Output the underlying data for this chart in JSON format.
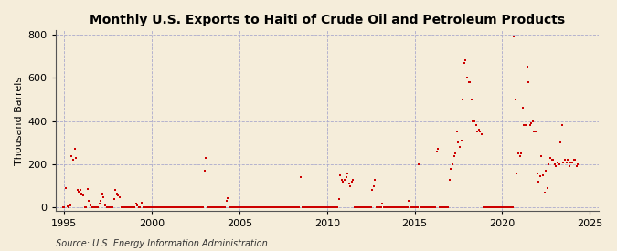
{
  "title": "Monthly U.S. Exports to Haiti of Crude Oil and Petroleum Products",
  "ylabel": "Thousand Barrels",
  "source_text": "Source: U.S. Energy Information Administration",
  "xlim": [
    1994.5,
    2025.5
  ],
  "ylim": [
    -15,
    820
  ],
  "yticks": [
    0,
    200,
    400,
    600,
    800
  ],
  "xticks": [
    1995,
    2000,
    2005,
    2010,
    2015,
    2020,
    2025
  ],
  "marker_color": "#CC0000",
  "marker_size": 4,
  "background_color": "#F5EDDA",
  "grid_color": "#AAAACC",
  "title_fontsize": 10,
  "source_fontsize": 7,
  "data": [
    [
      1994.917,
      2
    ],
    [
      1995.0,
      3
    ],
    [
      1995.083,
      90
    ],
    [
      1995.167,
      8
    ],
    [
      1995.25,
      3
    ],
    [
      1995.333,
      10
    ],
    [
      1995.417,
      240
    ],
    [
      1995.5,
      220
    ],
    [
      1995.583,
      270
    ],
    [
      1995.667,
      230
    ],
    [
      1995.75,
      80
    ],
    [
      1995.833,
      75
    ],
    [
      1995.917,
      80
    ],
    [
      1996.0,
      60
    ],
    [
      1996.083,
      55
    ],
    [
      1996.167,
      3
    ],
    [
      1996.25,
      3
    ],
    [
      1996.333,
      85
    ],
    [
      1996.417,
      30
    ],
    [
      1996.5,
      10
    ],
    [
      1996.583,
      3
    ],
    [
      1996.667,
      3
    ],
    [
      1996.75,
      3
    ],
    [
      1996.833,
      3
    ],
    [
      1996.917,
      3
    ],
    [
      1997.0,
      20
    ],
    [
      1997.083,
      30
    ],
    [
      1997.167,
      60
    ],
    [
      1997.25,
      50
    ],
    [
      1997.333,
      10
    ],
    [
      1997.417,
      3
    ],
    [
      1997.5,
      3
    ],
    [
      1997.583,
      3
    ],
    [
      1997.667,
      3
    ],
    [
      1997.75,
      3
    ],
    [
      1997.833,
      40
    ],
    [
      1997.917,
      80
    ],
    [
      1998.0,
      60
    ],
    [
      1998.083,
      55
    ],
    [
      1998.167,
      50
    ],
    [
      1998.25,
      3
    ],
    [
      1998.333,
      3
    ],
    [
      1998.417,
      3
    ],
    [
      1998.5,
      3
    ],
    [
      1998.583,
      3
    ],
    [
      1998.667,
      3
    ],
    [
      1998.75,
      3
    ],
    [
      1998.833,
      3
    ],
    [
      1998.917,
      3
    ],
    [
      1999.0,
      3
    ],
    [
      1999.083,
      20
    ],
    [
      1999.167,
      10
    ],
    [
      1999.25,
      3
    ],
    [
      1999.333,
      3
    ],
    [
      1999.417,
      25
    ],
    [
      1999.5,
      3
    ],
    [
      1999.583,
      3
    ],
    [
      1999.667,
      3
    ],
    [
      1999.75,
      3
    ],
    [
      1999.833,
      3
    ],
    [
      1999.917,
      3
    ],
    [
      2000.0,
      3
    ],
    [
      2000.083,
      3
    ],
    [
      2000.167,
      3
    ],
    [
      2000.25,
      3
    ],
    [
      2000.333,
      3
    ],
    [
      2000.417,
      3
    ],
    [
      2000.5,
      3
    ],
    [
      2000.583,
      3
    ],
    [
      2000.667,
      3
    ],
    [
      2000.75,
      3
    ],
    [
      2000.833,
      3
    ],
    [
      2000.917,
      3
    ],
    [
      2001.0,
      3
    ],
    [
      2001.083,
      3
    ],
    [
      2001.167,
      3
    ],
    [
      2001.25,
      3
    ],
    [
      2001.333,
      3
    ],
    [
      2001.417,
      3
    ],
    [
      2001.5,
      3
    ],
    [
      2001.583,
      3
    ],
    [
      2001.667,
      3
    ],
    [
      2001.75,
      3
    ],
    [
      2001.833,
      3
    ],
    [
      2001.917,
      3
    ],
    [
      2002.0,
      3
    ],
    [
      2002.083,
      3
    ],
    [
      2002.167,
      3
    ],
    [
      2002.25,
      3
    ],
    [
      2002.333,
      3
    ],
    [
      2002.417,
      3
    ],
    [
      2002.5,
      3
    ],
    [
      2002.583,
      3
    ],
    [
      2002.667,
      3
    ],
    [
      2002.75,
      3
    ],
    [
      2002.833,
      3
    ],
    [
      2002.917,
      3
    ],
    [
      2003.0,
      170
    ],
    [
      2003.083,
      230
    ],
    [
      2003.167,
      3
    ],
    [
      2003.25,
      3
    ],
    [
      2003.333,
      3
    ],
    [
      2003.417,
      3
    ],
    [
      2003.5,
      3
    ],
    [
      2003.583,
      3
    ],
    [
      2003.667,
      3
    ],
    [
      2003.75,
      3
    ],
    [
      2003.833,
      3
    ],
    [
      2003.917,
      3
    ],
    [
      2004.0,
      3
    ],
    [
      2004.083,
      3
    ],
    [
      2004.167,
      3
    ],
    [
      2004.25,
      30
    ],
    [
      2004.333,
      45
    ],
    [
      2004.417,
      3
    ],
    [
      2004.5,
      3
    ],
    [
      2004.583,
      3
    ],
    [
      2004.667,
      3
    ],
    [
      2004.75,
      3
    ],
    [
      2004.833,
      3
    ],
    [
      2004.917,
      3
    ],
    [
      2005.0,
      3
    ],
    [
      2005.083,
      3
    ],
    [
      2005.167,
      3
    ],
    [
      2005.25,
      3
    ],
    [
      2005.333,
      3
    ],
    [
      2005.417,
      3
    ],
    [
      2005.5,
      3
    ],
    [
      2005.583,
      3
    ],
    [
      2005.667,
      3
    ],
    [
      2005.75,
      3
    ],
    [
      2005.833,
      3
    ],
    [
      2005.917,
      3
    ],
    [
      2006.0,
      3
    ],
    [
      2006.083,
      3
    ],
    [
      2006.167,
      3
    ],
    [
      2006.25,
      3
    ],
    [
      2006.333,
      3
    ],
    [
      2006.417,
      3
    ],
    [
      2006.5,
      3
    ],
    [
      2006.583,
      3
    ],
    [
      2006.667,
      3
    ],
    [
      2006.75,
      3
    ],
    [
      2006.833,
      3
    ],
    [
      2006.917,
      3
    ],
    [
      2007.0,
      3
    ],
    [
      2007.083,
      3
    ],
    [
      2007.167,
      3
    ],
    [
      2007.25,
      3
    ],
    [
      2007.333,
      3
    ],
    [
      2007.417,
      3
    ],
    [
      2007.5,
      3
    ],
    [
      2007.583,
      3
    ],
    [
      2007.667,
      3
    ],
    [
      2007.75,
      3
    ],
    [
      2007.833,
      3
    ],
    [
      2007.917,
      3
    ],
    [
      2008.0,
      3
    ],
    [
      2008.083,
      3
    ],
    [
      2008.167,
      3
    ],
    [
      2008.25,
      3
    ],
    [
      2008.333,
      3
    ],
    [
      2008.417,
      3
    ],
    [
      2008.5,
      140
    ],
    [
      2008.583,
      3
    ],
    [
      2008.667,
      3
    ],
    [
      2008.75,
      3
    ],
    [
      2008.833,
      3
    ],
    [
      2008.917,
      3
    ],
    [
      2009.0,
      3
    ],
    [
      2009.083,
      3
    ],
    [
      2009.167,
      3
    ],
    [
      2009.25,
      3
    ],
    [
      2009.333,
      3
    ],
    [
      2009.417,
      3
    ],
    [
      2009.5,
      3
    ],
    [
      2009.583,
      3
    ],
    [
      2009.667,
      3
    ],
    [
      2009.75,
      3
    ],
    [
      2009.833,
      3
    ],
    [
      2009.917,
      3
    ],
    [
      2010.0,
      3
    ],
    [
      2010.083,
      3
    ],
    [
      2010.167,
      3
    ],
    [
      2010.25,
      3
    ],
    [
      2010.333,
      3
    ],
    [
      2010.417,
      3
    ],
    [
      2010.5,
      3
    ],
    [
      2010.583,
      3
    ],
    [
      2010.667,
      40
    ],
    [
      2010.75,
      150
    ],
    [
      2010.833,
      130
    ],
    [
      2010.917,
      120
    ],
    [
      2011.0,
      130
    ],
    [
      2011.083,
      140
    ],
    [
      2011.167,
      160
    ],
    [
      2011.25,
      110
    ],
    [
      2011.333,
      100
    ],
    [
      2011.417,
      120
    ],
    [
      2011.5,
      130
    ],
    [
      2011.583,
      3
    ],
    [
      2011.667,
      3
    ],
    [
      2011.75,
      3
    ],
    [
      2011.833,
      3
    ],
    [
      2011.917,
      3
    ],
    [
      2012.0,
      3
    ],
    [
      2012.083,
      3
    ],
    [
      2012.167,
      3
    ],
    [
      2012.25,
      3
    ],
    [
      2012.333,
      3
    ],
    [
      2012.417,
      3
    ],
    [
      2012.5,
      3
    ],
    [
      2012.583,
      80
    ],
    [
      2012.667,
      100
    ],
    [
      2012.75,
      130
    ],
    [
      2012.833,
      3
    ],
    [
      2012.917,
      3
    ],
    [
      2013.0,
      3
    ],
    [
      2013.083,
      3
    ],
    [
      2013.167,
      20
    ],
    [
      2013.25,
      3
    ],
    [
      2013.333,
      3
    ],
    [
      2013.417,
      3
    ],
    [
      2013.5,
      3
    ],
    [
      2013.583,
      3
    ],
    [
      2013.667,
      3
    ],
    [
      2013.75,
      3
    ],
    [
      2013.833,
      3
    ],
    [
      2013.917,
      3
    ],
    [
      2014.0,
      3
    ],
    [
      2014.083,
      3
    ],
    [
      2014.167,
      3
    ],
    [
      2014.25,
      3
    ],
    [
      2014.333,
      3
    ],
    [
      2014.417,
      3
    ],
    [
      2014.5,
      3
    ],
    [
      2014.583,
      3
    ],
    [
      2014.667,
      30
    ],
    [
      2014.75,
      3
    ],
    [
      2014.833,
      3
    ],
    [
      2014.917,
      3
    ],
    [
      2015.0,
      3
    ],
    [
      2015.083,
      3
    ],
    [
      2015.167,
      3
    ],
    [
      2015.25,
      200
    ],
    [
      2015.333,
      3
    ],
    [
      2015.417,
      3
    ],
    [
      2015.5,
      3
    ],
    [
      2015.583,
      3
    ],
    [
      2015.667,
      3
    ],
    [
      2015.75,
      3
    ],
    [
      2015.833,
      3
    ],
    [
      2015.917,
      3
    ],
    [
      2016.0,
      3
    ],
    [
      2016.083,
      3
    ],
    [
      2016.167,
      3
    ],
    [
      2016.25,
      260
    ],
    [
      2016.333,
      270
    ],
    [
      2016.417,
      3
    ],
    [
      2016.5,
      3
    ],
    [
      2016.583,
      3
    ],
    [
      2016.667,
      3
    ],
    [
      2016.75,
      3
    ],
    [
      2016.833,
      3
    ],
    [
      2016.917,
      3
    ],
    [
      2017.0,
      130
    ],
    [
      2017.083,
      180
    ],
    [
      2017.167,
      200
    ],
    [
      2017.25,
      240
    ],
    [
      2017.333,
      250
    ],
    [
      2017.417,
      350
    ],
    [
      2017.5,
      300
    ],
    [
      2017.583,
      280
    ],
    [
      2017.667,
      310
    ],
    [
      2017.75,
      500
    ],
    [
      2017.833,
      670
    ],
    [
      2017.917,
      680
    ],
    [
      2018.0,
      600
    ],
    [
      2018.083,
      580
    ],
    [
      2018.167,
      580
    ],
    [
      2018.25,
      500
    ],
    [
      2018.333,
      400
    ],
    [
      2018.417,
      400
    ],
    [
      2018.5,
      380
    ],
    [
      2018.583,
      350
    ],
    [
      2018.667,
      360
    ],
    [
      2018.75,
      350
    ],
    [
      2018.833,
      340
    ],
    [
      2018.917,
      3
    ],
    [
      2019.0,
      3
    ],
    [
      2019.083,
      3
    ],
    [
      2019.167,
      3
    ],
    [
      2019.25,
      3
    ],
    [
      2019.333,
      3
    ],
    [
      2019.417,
      3
    ],
    [
      2019.5,
      3
    ],
    [
      2019.583,
      3
    ],
    [
      2019.667,
      3
    ],
    [
      2019.75,
      3
    ],
    [
      2019.833,
      3
    ],
    [
      2019.917,
      3
    ],
    [
      2020.0,
      3
    ],
    [
      2020.083,
      3
    ],
    [
      2020.167,
      3
    ],
    [
      2020.25,
      3
    ],
    [
      2020.333,
      3
    ],
    [
      2020.417,
      3
    ],
    [
      2020.5,
      3
    ],
    [
      2020.583,
      3
    ],
    [
      2020.667,
      790
    ],
    [
      2020.75,
      500
    ],
    [
      2020.833,
      160
    ],
    [
      2020.917,
      250
    ],
    [
      2021.0,
      240
    ],
    [
      2021.083,
      250
    ],
    [
      2021.167,
      460
    ],
    [
      2021.25,
      380
    ],
    [
      2021.333,
      380
    ],
    [
      2021.417,
      650
    ],
    [
      2021.5,
      580
    ],
    [
      2021.583,
      380
    ],
    [
      2021.667,
      390
    ],
    [
      2021.75,
      400
    ],
    [
      2021.833,
      350
    ],
    [
      2021.917,
      350
    ],
    [
      2022.0,
      160
    ],
    [
      2022.083,
      120
    ],
    [
      2022.167,
      145
    ],
    [
      2022.25,
      240
    ],
    [
      2022.333,
      150
    ],
    [
      2022.417,
      70
    ],
    [
      2022.5,
      170
    ],
    [
      2022.583,
      90
    ],
    [
      2022.667,
      200
    ],
    [
      2022.75,
      230
    ],
    [
      2022.833,
      220
    ],
    [
      2022.917,
      220
    ],
    [
      2023.0,
      200
    ],
    [
      2023.083,
      190
    ],
    [
      2023.167,
      210
    ],
    [
      2023.25,
      200
    ],
    [
      2023.333,
      300
    ],
    [
      2023.417,
      380
    ],
    [
      2023.5,
      210
    ],
    [
      2023.583,
      220
    ],
    [
      2023.667,
      210
    ],
    [
      2023.75,
      220
    ],
    [
      2023.833,
      190
    ],
    [
      2023.917,
      210
    ],
    [
      2024.0,
      210
    ],
    [
      2024.083,
      220
    ],
    [
      2024.167,
      220
    ],
    [
      2024.25,
      190
    ],
    [
      2024.333,
      200
    ]
  ]
}
